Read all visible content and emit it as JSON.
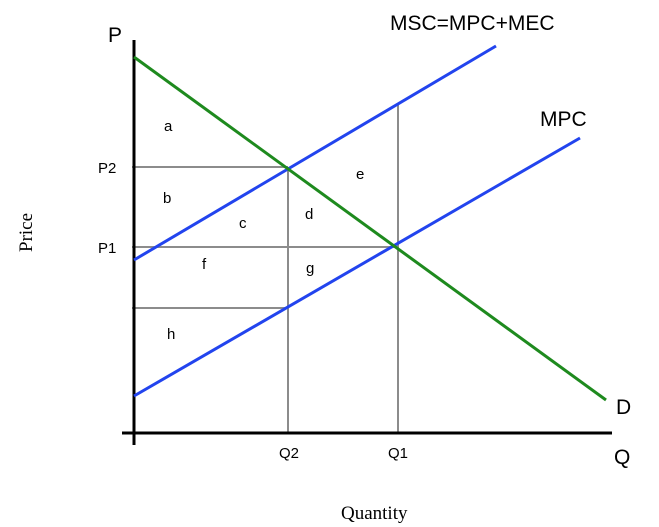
{
  "axes": {
    "y_letter": "P",
    "x_letter": "Q",
    "y_title": "Price",
    "x_title": "Quantity",
    "y_ticks": {
      "p2": "P2",
      "p1": "P1"
    },
    "x_ticks": {
      "q2": "Q2",
      "q1": "Q1"
    }
  },
  "curves": {
    "msc_label": "MSC=MPC+MEC",
    "mpc_label": "MPC",
    "demand_label": "D"
  },
  "regions": {
    "a": "a",
    "b": "b",
    "c": "c",
    "d": "d",
    "e": "e",
    "f": "f",
    "g": "g",
    "h": "h"
  },
  "colors": {
    "demand": "#1e8a1e",
    "supply": "#2244ee",
    "guide": "#8c8c8c",
    "axis": "#000000"
  }
}
